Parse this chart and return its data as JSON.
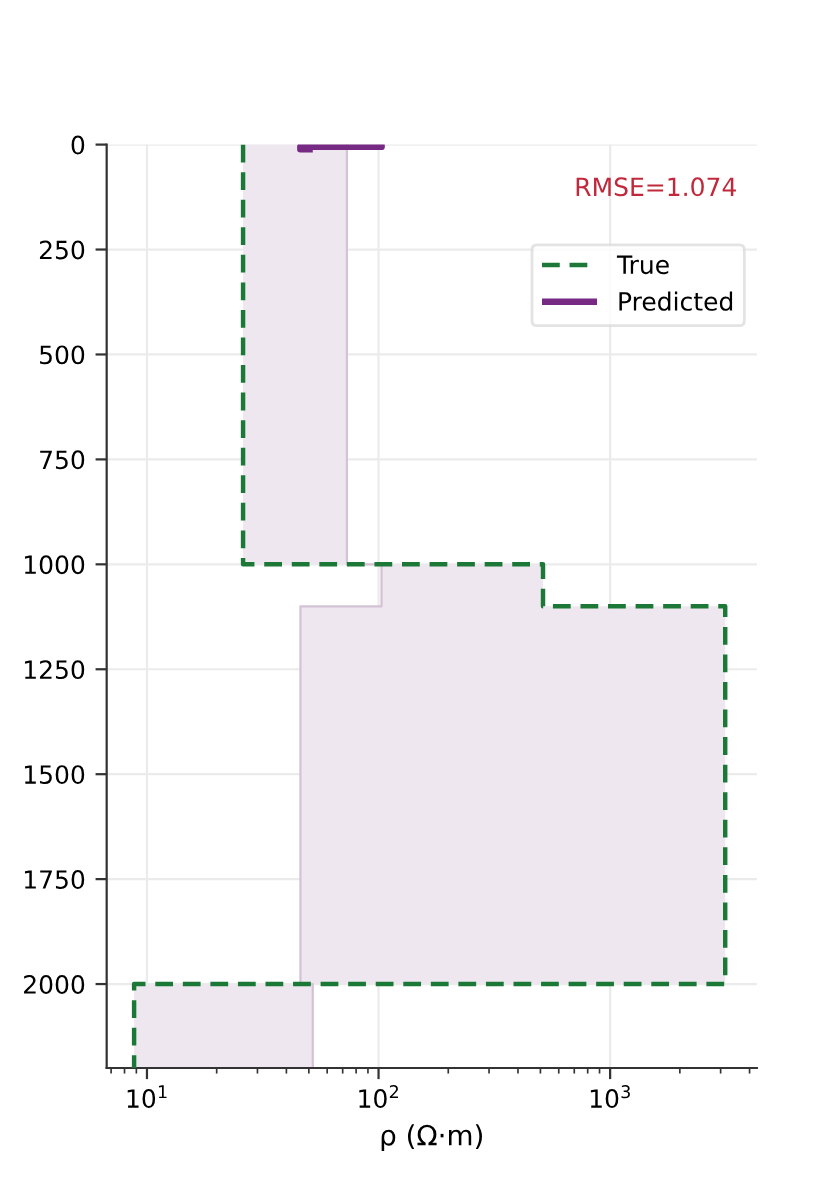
{
  "chart_data": {
    "type": "line",
    "orientation": "horizontal",
    "xlabel": "ρ (Ω·m)",
    "annotations": [
      "RMSE=1.074"
    ],
    "log": "x",
    "xlim": [
      6.7,
      4300
    ],
    "ylim": [
      2200,
      0
    ],
    "xticks": [
      {
        "value": 7,
        "label": null
      },
      {
        "value": 8,
        "label": null
      },
      {
        "value": 9,
        "label": null
      },
      {
        "value": 10,
        "label": "10$^{1}$"
      },
      {
        "value": 20,
        "label": null
      },
      {
        "value": 30,
        "label": null
      },
      {
        "value": 40,
        "label": null
      },
      {
        "value": 50,
        "label": null
      },
      {
        "value": 60,
        "label": null
      },
      {
        "value": 70,
        "label": null
      },
      {
        "value": 80,
        "label": null
      },
      {
        "value": 90,
        "label": null
      },
      {
        "value": 100,
        "label": "10$^{2}$"
      },
      {
        "value": 200,
        "label": null
      },
      {
        "value": 300,
        "label": null
      },
      {
        "value": 400,
        "label": null
      },
      {
        "value": 500,
        "label": null
      },
      {
        "value": 600,
        "label": null
      },
      {
        "value": 700,
        "label": null
      },
      {
        "value": 800,
        "label": null
      },
      {
        "value": 900,
        "label": null
      },
      {
        "value": 1000,
        "label": "10$^{3}$"
      },
      {
        "value": 2000,
        "label": null
      },
      {
        "value": 3000,
        "label": null
      },
      {
        "value": 4000,
        "label": null
      }
    ],
    "yticks": [
      0,
      250,
      500,
      750,
      1000,
      1250,
      1500,
      1750,
      2000
    ],
    "grid": true,
    "legend": "top right",
    "series": [
      {
        "color": "#d4c2d6",
        "line_style": "solid",
        "x": [
          0,
          1000,
          1000,
          1100,
          1100,
          2000,
          2000,
          2200
        ],
        "values": [
          73,
          73,
          103,
          103,
          46,
          46,
          52,
          52
        ],
        "lower": [
          26,
          26,
          103,
          103,
          46,
          46,
          8.8,
          8.8
        ],
        "upper": [
          73,
          73,
          513,
          513,
          3140,
          3140,
          52,
          52
        ]
      },
      {
        "name": "True",
        "color": "#1b7837",
        "line_style": "dashed",
        "x": [
          0,
          1000,
          1000,
          1100,
          1100,
          2000,
          2000,
          2200
        ],
        "values": [
          26,
          26,
          513,
          513,
          3140,
          3140,
          8.8,
          8.8
        ]
      },
      {
        "name": "Predicted",
        "color": "#762a83",
        "line_style": "solid",
        "x": [
          0,
          3,
          3,
          5,
          5,
          11,
          11,
          13
        ],
        "values": [
          73,
          73,
          103,
          103,
          46,
          46,
          52,
          52
        ]
      }
    ]
  }
}
